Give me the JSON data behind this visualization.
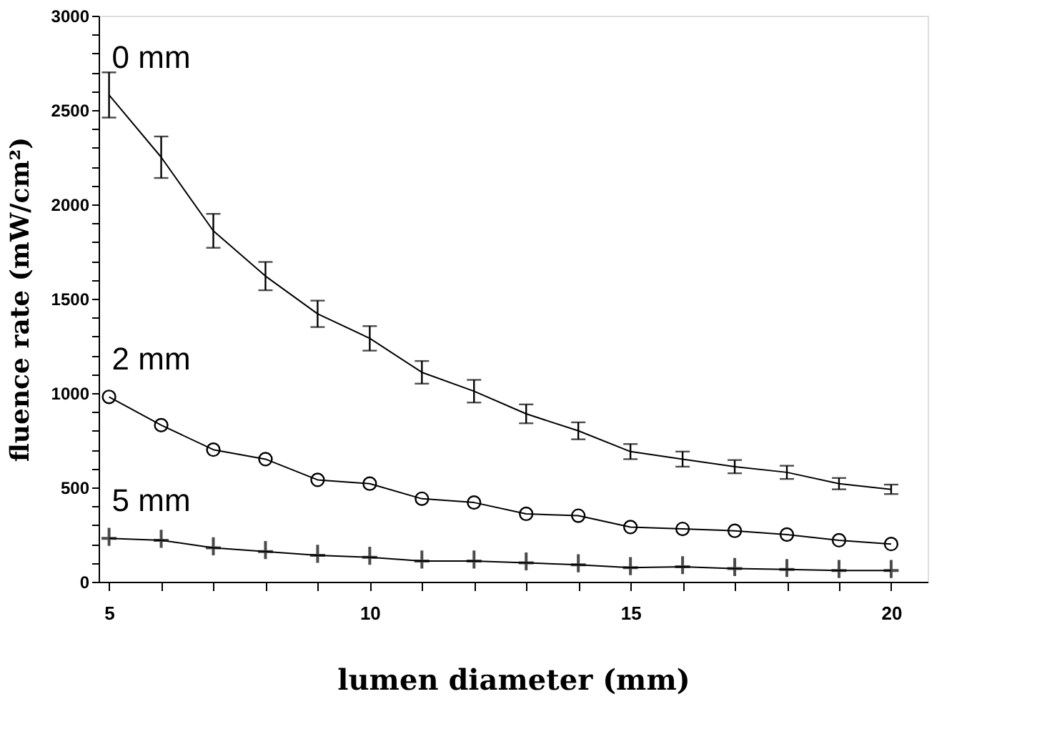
{
  "chart_data": {
    "type": "line",
    "xlabel": "lumen diameter (mm)",
    "ylabel": "fluence rate (mW/cm²)",
    "x": [
      5,
      6,
      7,
      8,
      9,
      10,
      11,
      12,
      13,
      14,
      15,
      16,
      17,
      18,
      19,
      20
    ],
    "series": [
      {
        "name": "0 mm",
        "color": "#000000",
        "marker": "none",
        "values": [
          2580,
          2250,
          1860,
          1620,
          1420,
          1290,
          1110,
          1010,
          890,
          800,
          690,
          650,
          610,
          580,
          520,
          490
        ],
        "errors": [
          120,
          110,
          90,
          75,
          70,
          65,
          60,
          60,
          50,
          45,
          40,
          40,
          35,
          35,
          30,
          25
        ]
      },
      {
        "name": "2 mm",
        "color": "#000000",
        "marker": "circle",
        "values": [
          980,
          830,
          700,
          650,
          540,
          520,
          440,
          420,
          360,
          350,
          290,
          280,
          270,
          250,
          220,
          200
        ]
      },
      {
        "name": "5 mm",
        "color": "#000000",
        "marker": "cross",
        "values": [
          230,
          220,
          180,
          160,
          140,
          130,
          110,
          110,
          100,
          90,
          75,
          80,
          70,
          65,
          60,
          60
        ]
      }
    ],
    "xlim": [
      4.8,
      20.7
    ],
    "xticks": [
      5,
      {
        "value": 6,
        "label": null
      },
      {
        "value": 7,
        "label": null
      },
      {
        "value": 8,
        "label": null
      },
      {
        "value": 9,
        "label": null
      },
      10,
      {
        "value": 11,
        "label": null
      },
      {
        "value": 12,
        "label": null
      },
      {
        "value": 13,
        "label": null
      },
      {
        "value": 14,
        "label": null
      },
      15,
      {
        "value": 16,
        "label": null
      },
      {
        "value": 17,
        "label": null
      },
      {
        "value": 18,
        "label": null
      },
      {
        "value": 19,
        "label": null
      },
      20
    ],
    "ylim": [
      0,
      3000
    ],
    "yticks": [
      0,
      {
        "value": 100,
        "label": null
      },
      {
        "value": 200,
        "label": null
      },
      {
        "value": 300,
        "label": null
      },
      {
        "value": 400,
        "label": null
      },
      500,
      {
        "value": 600,
        "label": null
      },
      {
        "value": 700,
        "label": null
      },
      {
        "value": 800,
        "label": null
      },
      {
        "value": 900,
        "label": null
      },
      1000,
      {
        "value": 1100,
        "label": null
      },
      {
        "value": 1200,
        "label": null
      },
      {
        "value": 1300,
        "label": null
      },
      {
        "value": 1400,
        "label": null
      },
      1500,
      {
        "value": 1600,
        "label": null
      },
      {
        "value": 1700,
        "label": null
      },
      {
        "value": 1800,
        "label": null
      },
      {
        "value": 1900,
        "label": null
      },
      2000,
      {
        "value": 2100,
        "label": null
      },
      {
        "value": 2200,
        "label": null
      },
      {
        "value": 2300,
        "label": null
      },
      {
        "value": 2400,
        "label": null
      },
      2500,
      {
        "value": 2600,
        "label": null
      },
      {
        "value": 2700,
        "label": null
      },
      {
        "value": 2800,
        "label": null
      },
      {
        "value": 2900,
        "label": null
      },
      3000
    ],
    "grid": false,
    "legend": false,
    "line_style": "solid"
  }
}
